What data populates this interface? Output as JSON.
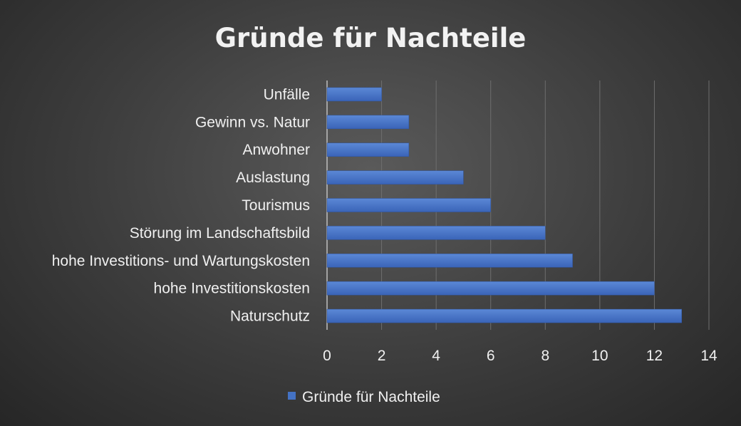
{
  "chart_data": {
    "type": "bar",
    "orientation": "horizontal",
    "title": "Gründe für Nachteile",
    "categories": [
      "Unfälle",
      "Gewinn vs. Natur",
      "Anwohner",
      "Auslastung",
      "Tourismus",
      "Störung im Landschaftsbild",
      "hohe Investitions- und Wartungskosten",
      "hohe Investitionskosten",
      "Naturschutz"
    ],
    "series": [
      {
        "name": "Gründe für Nachteile",
        "values": [
          2,
          3,
          3,
          5,
          6,
          8,
          9,
          12,
          13
        ],
        "color": "#4472C4"
      }
    ],
    "xlim": [
      0,
      14
    ],
    "xticks": [
      0,
      2,
      4,
      6,
      8,
      10,
      12,
      14
    ],
    "grid": "vertical",
    "legend": "bottom"
  }
}
